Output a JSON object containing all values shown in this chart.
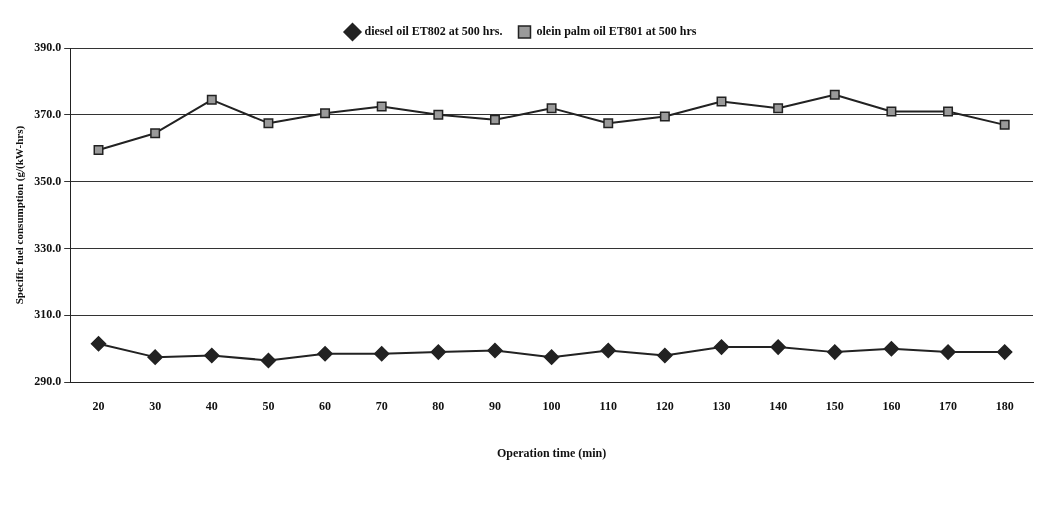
{
  "chart_data": {
    "type": "line",
    "xlabel": "Operation time (min)",
    "ylabel": "Specific fuel consumption (g/(kW-hrs)",
    "categories": [
      "20",
      "30",
      "40",
      "50",
      "60",
      "70",
      "80",
      "90",
      "100",
      "110",
      "120",
      "130",
      "140",
      "150",
      "160",
      "170",
      "180"
    ],
    "series": [
      {
        "name": "diesel oil ET802 at 500 hrs.",
        "color": "#222222",
        "marker": "diamond",
        "values": [
          301.5,
          297.5,
          298,
          296.5,
          298.5,
          298.5,
          299,
          299.5,
          297.5,
          299.5,
          298,
          300.5,
          300.5,
          299,
          300,
          299,
          299
        ]
      },
      {
        "name": "olein palm oil ET801 at 500 hrs",
        "color": "#222222",
        "marker": "square",
        "values": [
          359.5,
          364.5,
          374.5,
          367.5,
          370.5,
          372.5,
          370,
          368.5,
          372,
          367.5,
          369.5,
          374,
          372,
          376,
          371,
          371,
          367
        ]
      }
    ],
    "ylim": [
      290,
      390
    ],
    "yticks": [
      {
        "value": 290,
        "label": "290.0"
      },
      {
        "value": 310,
        "label": "310.0"
      },
      {
        "value": 330,
        "label": "330.0"
      },
      {
        "value": 350,
        "label": "350.0"
      },
      {
        "value": 370,
        "label": "370.0"
      },
      {
        "value": 390,
        "label": "390.0"
      }
    ],
    "grid": "y",
    "legend": "top",
    "line_style": "solid"
  }
}
